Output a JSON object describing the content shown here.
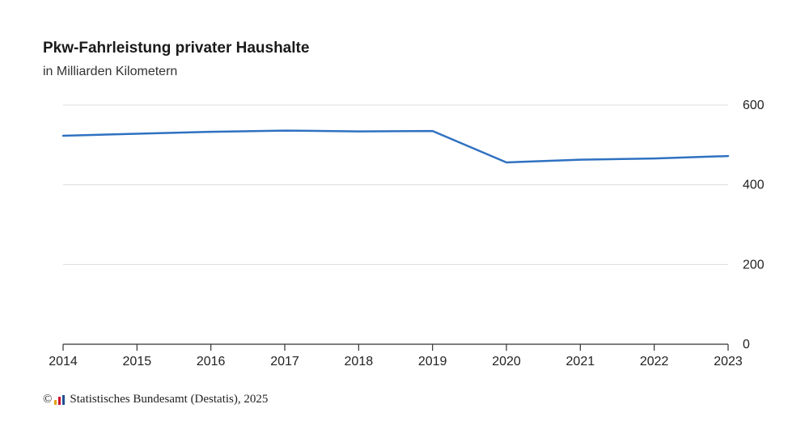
{
  "chart_data": {
    "type": "line",
    "title": "Pkw-Fahrleistung privater Haushalte",
    "subtitle": "in Milliarden Kilometern",
    "x": [
      "2014",
      "2015",
      "2016",
      "2017",
      "2018",
      "2019",
      "2020",
      "2021",
      "2022",
      "2023"
    ],
    "series": [
      {
        "values": [
          523,
          528,
          533,
          536,
          534,
          535,
          456,
          463,
          466,
          472
        ],
        "color": "#2f71c1"
      }
    ],
    "ylim": [
      0,
      600
    ],
    "yticks": [
      "0",
      "200",
      "400",
      "600"
    ],
    "y_axis_position": "right",
    "grid": true
  },
  "footer": {
    "copyright_symbol": "©",
    "source": "Statistisches Bundesamt (Destatis), 2025",
    "logo_colors": [
      "#e3a21a",
      "#c8102e",
      "#1f4e96"
    ]
  }
}
